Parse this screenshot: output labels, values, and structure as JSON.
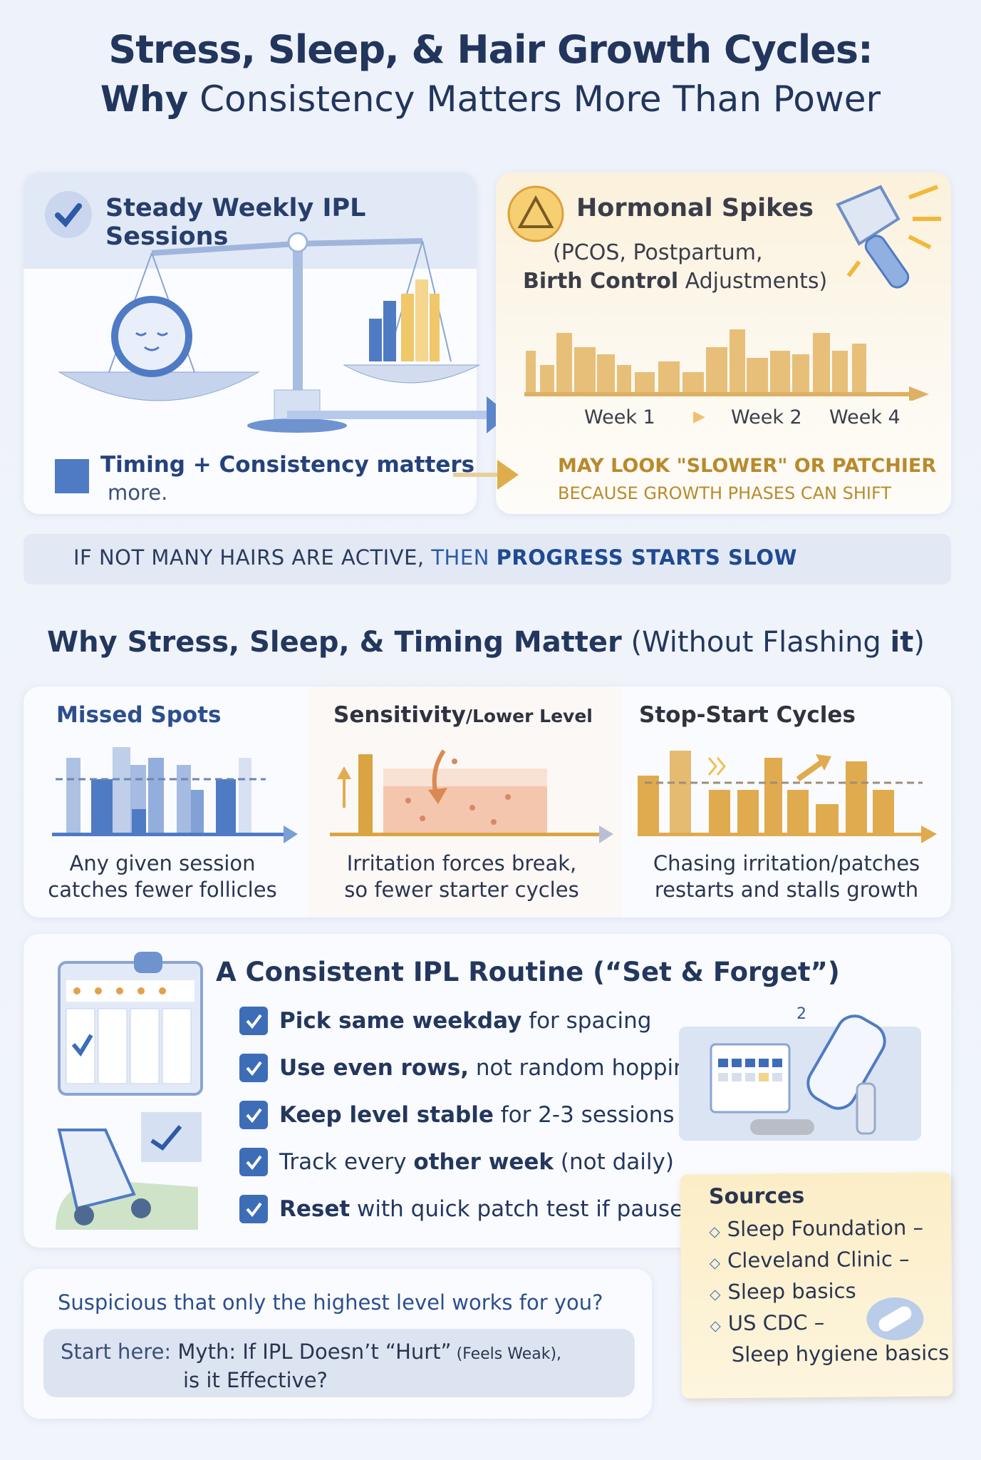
{
  "header": {
    "title_line1": "Stress, Sleep, & Hair Growth Cycles:",
    "title_line2_bold": "Why",
    "title_line2_rest": " Consistency Matters More Than Power"
  },
  "steady": {
    "title": "Steady Weekly IPL Sessions",
    "note_bold": "Timing + Consistency matters",
    "note_rest": "more.",
    "icon": "check-circle-icon"
  },
  "hormonal": {
    "title": "Hormonal Spikes",
    "subtitle1": "(PCOS, Postpartum,",
    "subtitle2_bold": "Birth Control",
    "subtitle2_rest": " Adjustments)",
    "week_labels": [
      "Week 1",
      "Week 2",
      "Week 4"
    ],
    "warning1": "MAY LOOK \"SLOWER\" OR PATCHIER",
    "warning2": "BECAUSE GROWTH PHASES CAN SHIFT",
    "icon": "warning-triangle-icon"
  },
  "banner": {
    "part1": "IF NOT MANY HAIRS ARE ACTIVE, ",
    "part2": "THEN ",
    "part3": "PROGRESS STARTS SLOW"
  },
  "section": {
    "title_bold": "Why Stress, Sleep, & Timing Matter",
    "title_rest": " (Without Flashing ",
    "title_it": "it",
    "title_end": ")"
  },
  "cards": [
    {
      "title": "Missed Spots",
      "caption1": "Any given session",
      "caption2": "catches fewer follicles"
    },
    {
      "title": "Sensitivity",
      "title_small": "/Lower Level",
      "caption1": "Irritation forces break,",
      "caption2": "so fewer starter cycles"
    },
    {
      "title": "Stop-Start Cycles",
      "caption1": "Chasing irritation/patches",
      "caption2": "restarts and stalls growth"
    }
  ],
  "routine": {
    "title": "A Consistent IPL Routine (“Set & Forget”)",
    "items": [
      {
        "bold": "Pick same weekday",
        "rest": " for spacing",
        "pre": ""
      },
      {
        "bold": "Use even rows,",
        "rest": " not random hopping",
        "pre": ""
      },
      {
        "bold": "Keep level stable",
        "rest": " for 2-3 sessions",
        "pre": ""
      },
      {
        "pre": "Track every ",
        "bold": "other week",
        "rest": " (not daily)"
      },
      {
        "pre": "",
        "bold": "Reset",
        "rest": " with quick patch test if paused"
      }
    ],
    "calendar_badge": "2"
  },
  "myth": {
    "question": "Suspicious that only the highest level works for you?",
    "start_label": "Start here:",
    "link_main": "Myth: If IPL Doesn’t “Hurt”",
    "link_small": " (Feels Weak),",
    "link_line2": "is it Effective?"
  },
  "sources": {
    "title": "Sources",
    "items": [
      "Sleep Foundation –",
      "Cleveland Clinic –",
      "Sleep basics",
      "US CDC –"
    ],
    "last_line2": "Sleep hygiene basics"
  },
  "colors": {
    "blue": "#3e6db8",
    "navy": "#22355c",
    "gold": "#d9a441",
    "peach": "#f1c2a4"
  }
}
